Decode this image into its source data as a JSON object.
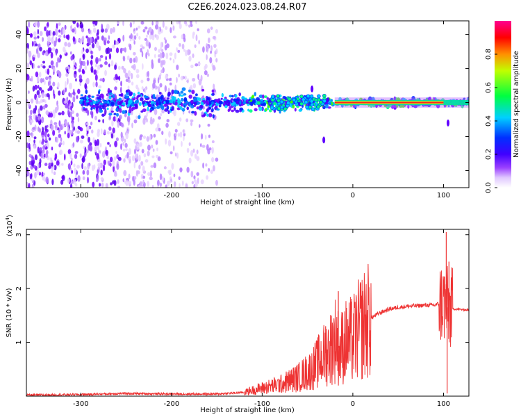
{
  "title": "C2E6.2024.023.08.24.R07",
  "chart_data": [
    {
      "type": "heatmap",
      "xlabel": "Height of straight line (km)",
      "ylabel": "Frequency (Hz)",
      "xlim": [
        -360,
        128
      ],
      "ylim": [
        -50,
        48
      ],
      "x_ticks": [
        -300,
        -200,
        -100,
        0,
        100
      ],
      "y_ticks": [
        -40,
        -20,
        0,
        20,
        40
      ],
      "colorbar": {
        "label": "Normalized spectral amplitude",
        "range": [
          0.0,
          1.0
        ],
        "ticks": [
          "0.0",
          "0.2",
          "0.4",
          "0.6",
          "0.8"
        ],
        "colors": [
          "#ffffff",
          "#c070ff",
          "#7a00ff",
          "#0000ff",
          "#00c8ff",
          "#00ff00",
          "#ffff00",
          "#ff8000",
          "#ff0000",
          "#ff0080"
        ]
      },
      "features": {
        "noise_region": [
          -360,
          -150
        ],
        "band_center_hz": 0,
        "strong_segment": [
          -20,
          100
        ]
      }
    },
    {
      "type": "line",
      "xlabel": "Height of straight line (km)",
      "ylabel": "SNR (10 * v/v)",
      "y_multiplier": "(x10",
      "y_multiplier_exp": "4",
      "y_multiplier_close": ")",
      "xlim": [
        -360,
        128
      ],
      "ylim": [
        0,
        3.1
      ],
      "x_ticks": [
        -300,
        -200,
        -100,
        0,
        100
      ],
      "y_ticks": [
        1,
        2,
        3
      ],
      "color": "#ee3333",
      "x": [
        -360,
        -300,
        -250,
        -200,
        -150,
        -120,
        -100,
        -80,
        -60,
        -45,
        -35,
        -25,
        -18,
        -15,
        -10,
        0,
        10,
        20,
        30,
        40,
        50,
        60,
        70,
        80,
        90,
        95,
        100,
        103,
        105,
        108,
        112,
        128
      ],
      "y": [
        0.02,
        0.03,
        0.05,
        0.04,
        0.04,
        0.07,
        0.15,
        0.22,
        0.35,
        0.5,
        0.7,
        0.9,
        1.1,
        0.8,
        1.0,
        1.05,
        1.3,
        1.45,
        1.55,
        1.62,
        1.65,
        1.67,
        1.68,
        1.69,
        1.69,
        1.72,
        1.75,
        1.7,
        1.6,
        1.62,
        1.62,
        1.6
      ],
      "spikes": [
        {
          "x": -16,
          "y": 1.95
        },
        {
          "x": -30,
          "y": 1.3
        },
        {
          "x": 103,
          "y": 3.05
        },
        {
          "x": 106,
          "y": 2.5
        },
        {
          "x": 104,
          "y": 0.05
        }
      ]
    }
  ]
}
